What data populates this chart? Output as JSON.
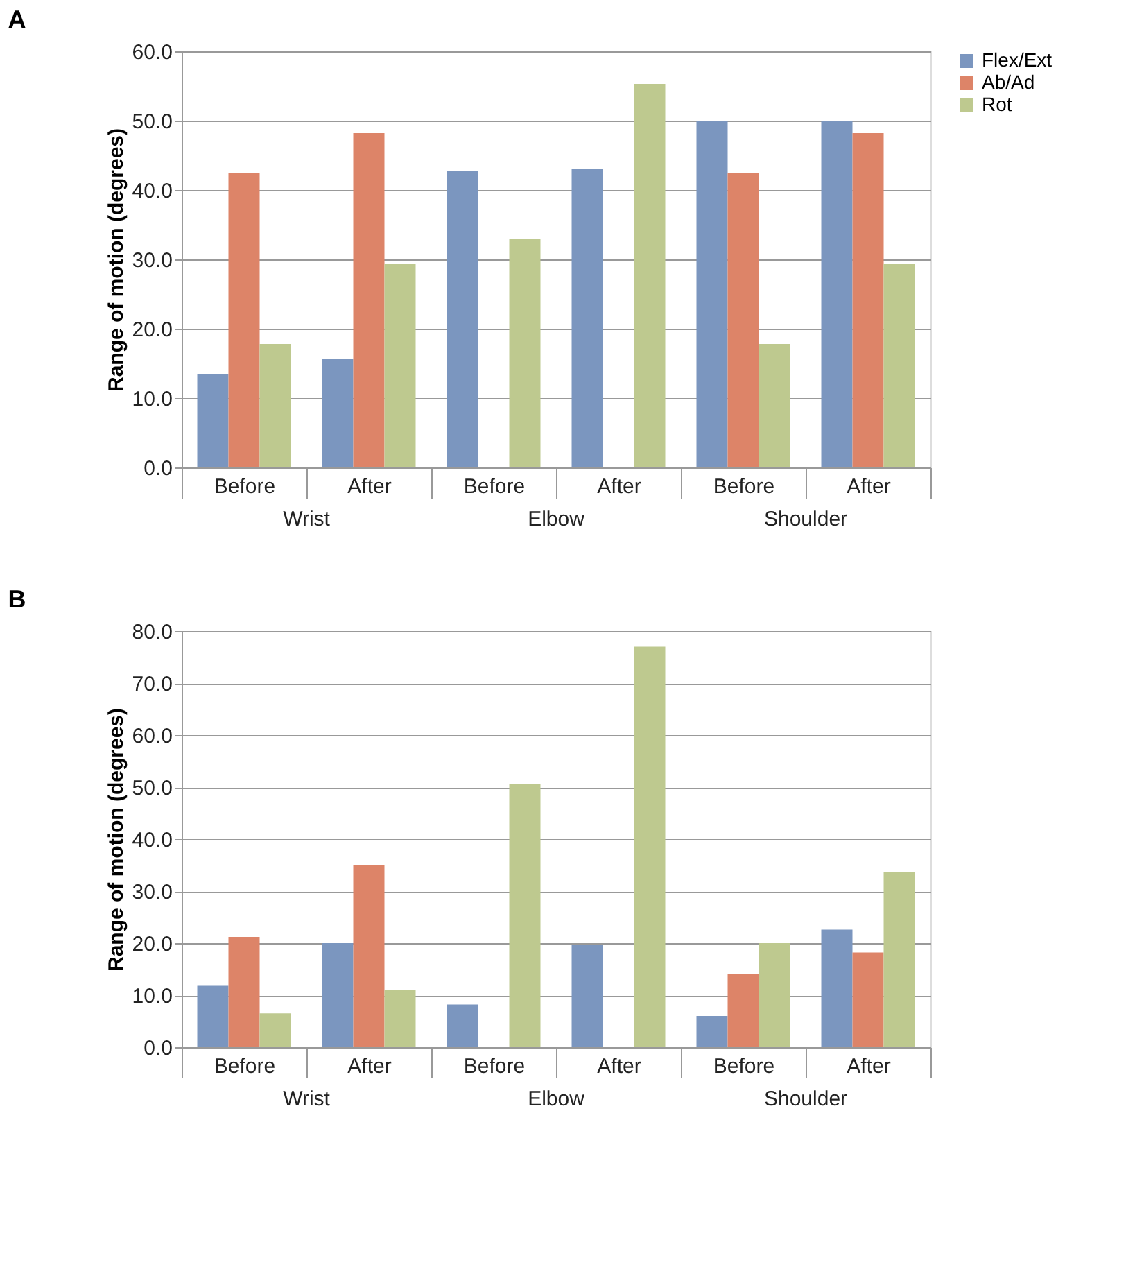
{
  "chart_data": [
    {
      "type": "bar",
      "title": "A",
      "ylabel": "Range of motion (degrees)",
      "categories": [
        "Before",
        "After",
        "Before",
        "After",
        "Before",
        "After"
      ],
      "annotations": [
        "Wrist",
        "Elbow",
        "Shoulder"
      ],
      "series": [
        {
          "name": "Flex/Ext",
          "color": "#7b96bf",
          "values": [
            13.5,
            15.6,
            42.7,
            43.0,
            50.0,
            50.0
          ]
        },
        {
          "name": "Ab/Ad",
          "color": "#dd8468",
          "values": [
            42.5,
            48.2,
            null,
            null,
            42.5,
            48.2
          ]
        },
        {
          "name": "Rot",
          "color": "#bec98f",
          "values": [
            17.8,
            29.4,
            33.0,
            55.3,
            17.8,
            29.4
          ]
        }
      ],
      "ylim": [
        0,
        60
      ],
      "yticks": [
        {
          "value": 0,
          "label": "0.0"
        },
        {
          "value": 10,
          "label": "10.0"
        },
        {
          "value": 20,
          "label": "20.0"
        },
        {
          "value": 30,
          "label": "30.0"
        },
        {
          "value": 40,
          "label": "40.0"
        },
        {
          "value": 50,
          "label": "50.0"
        },
        {
          "value": 60,
          "label": "60.0"
        }
      ],
      "grid": "y",
      "legend": "right"
    },
    {
      "type": "bar",
      "title": "B",
      "ylabel": "Range of motion (degrees)",
      "categories": [
        "Before",
        "After",
        "Before",
        "After",
        "Before",
        "After"
      ],
      "annotations": [
        "Wrist",
        "Elbow",
        "Shoulder"
      ],
      "series": [
        {
          "name": "Flex/Ext",
          "color": "#7b96bf",
          "values": [
            11.8,
            20.0,
            8.2,
            19.6,
            6.0,
            22.6
          ]
        },
        {
          "name": "Ab/Ad",
          "color": "#dd8468",
          "values": [
            21.2,
            35.0,
            null,
            null,
            14.0,
            18.2
          ]
        },
        {
          "name": "Rot",
          "color": "#bec98f",
          "values": [
            6.5,
            11.0,
            50.6,
            77.0,
            20.0,
            33.6
          ]
        }
      ],
      "ylim": [
        0,
        80
      ],
      "yticks": [
        {
          "value": 0,
          "label": "0.0"
        },
        {
          "value": 10,
          "label": "10.0"
        },
        {
          "value": 20,
          "label": "20.0"
        },
        {
          "value": 30,
          "label": "30.0"
        },
        {
          "value": 40,
          "label": "40.0"
        },
        {
          "value": 50,
          "label": "50.0"
        },
        {
          "value": 60,
          "label": "60.0"
        },
        {
          "value": 70,
          "label": "70.0"
        },
        {
          "value": 80,
          "label": "80.0"
        }
      ],
      "grid": "y",
      "legend": "right"
    }
  ]
}
